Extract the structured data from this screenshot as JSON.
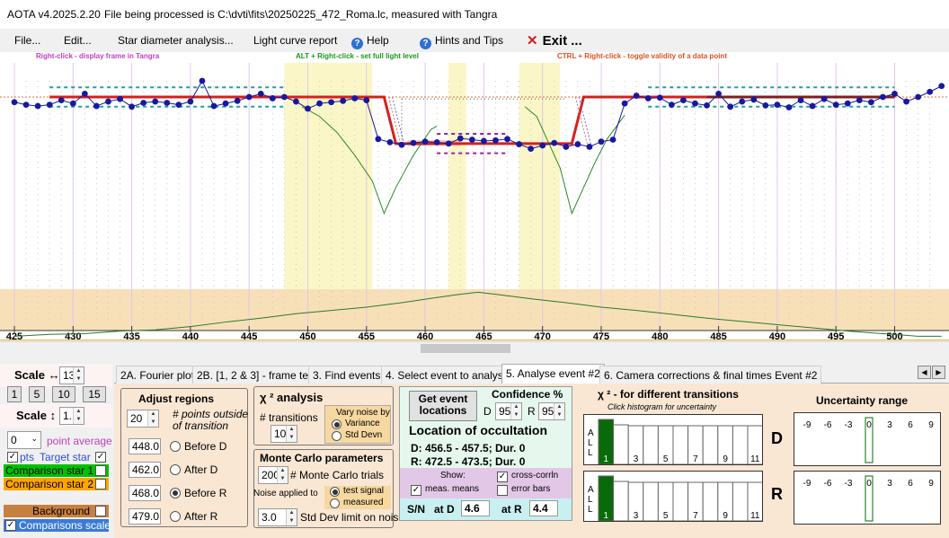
{
  "window": {
    "version": "AOTA v4.2025.2.20",
    "processing": "File being processed is C:\\dvti\\fits\\20250225_472_Roma.lc, measured with Tangra"
  },
  "menu": {
    "file": "File...",
    "edit": "Edit...",
    "star_diameter": "Star diameter analysis...",
    "light_curve_report": "Light curve report",
    "help": "Help",
    "hints": "Hints and Tips",
    "exit": "Exit ..."
  },
  "hints": {
    "right_click": "Right-click  -  display frame in Tangra",
    "alt_right_click": "ALT + Right-click  -  set full light level",
    "ctrl_right_click": "CTRL + Right-click  -  toggle validity of a data point"
  },
  "chart_data": {
    "type": "line",
    "x_ticks": [
      "425",
      "430",
      "435",
      "440",
      "445",
      "450",
      "455",
      "460",
      "465",
      "470",
      "475",
      "480",
      "485",
      "490",
      "495",
      "500"
    ],
    "xlim": [
      424.5,
      504
    ],
    "target": {
      "x": [
        425,
        426,
        427,
        428,
        429,
        430,
        431,
        432,
        433,
        434,
        435,
        436,
        437,
        438,
        439,
        440,
        441,
        442,
        443,
        444,
        445,
        446,
        447,
        448,
        449,
        450,
        451,
        452,
        453,
        454,
        455,
        456,
        457,
        458,
        459,
        460,
        461,
        462,
        463,
        464,
        465,
        466,
        467,
        468,
        469,
        470,
        471,
        472,
        473,
        474,
        475,
        476,
        477,
        478,
        479,
        480,
        481,
        482,
        483,
        484,
        485,
        486,
        487,
        488,
        489,
        490,
        491,
        492,
        493,
        494,
        495,
        496,
        497,
        498,
        499,
        500,
        501,
        502,
        503,
        504
      ],
      "y": [
        0.92,
        0.88,
        0.86,
        0.88,
        0.95,
        0.9,
        1.05,
        0.86,
        0.93,
        0.97,
        0.85,
        0.91,
        0.93,
        0.91,
        0.88,
        0.93,
        1.25,
        0.86,
        0.9,
        0.94,
        1.0,
        1.05,
        0.98,
        1.0,
        0.93,
        0.82,
        0.9,
        0.92,
        0.94,
        0.98,
        0.95,
        0.35,
        0.3,
        0.26,
        0.29,
        0.31,
        0.3,
        0.28,
        0.36,
        0.34,
        0.32,
        0.33,
        0.35,
        0.27,
        0.2,
        0.25,
        0.29,
        0.23,
        0.27,
        0.23,
        0.31,
        0.34,
        0.9,
        1.02,
        0.98,
        0.99,
        0.88,
        0.95,
        0.9,
        0.87,
        1.05,
        0.85,
        0.93,
        0.96,
        0.87,
        0.88,
        0.84,
        0.95,
        0.86,
        0.97,
        0.88,
        0.9,
        0.95,
        0.92,
        1.0,
        1.05,
        0.93,
        1.0,
        1.08,
        1.17
      ]
    },
    "model_levels": {
      "baseline": 1.0,
      "bottom": 0.28,
      "D": 456.5,
      "R": 472.5
    },
    "event_markers": {
      "D": [
        456.5,
        457.5
      ],
      "R": [
        472.5,
        473.5
      ]
    },
    "regions": {
      "before_d": [
        448,
        455.5
      ],
      "after_d": [
        462,
        463.5
      ],
      "before_r": [
        468,
        471.5
      ],
      "after_r": [
        479,
        480
      ]
    },
    "grid": true
  },
  "left_panel": {
    "scale_h_label": "Scale ↔",
    "scale_h_value": "13.0",
    "scale_buttons": [
      "1",
      "5",
      "10",
      "15"
    ],
    "scale_v_label": "Scale ↕",
    "scale_v_value": "1.10",
    "point_avg_value": "0",
    "point_avg_label": "point average",
    "target_row_left": "pts",
    "target_label": "Target star",
    "comp1_label": "Comparison star 1",
    "comp2_label": "Comparison star 2",
    "background_label": "Background",
    "comparisons_scaled_label": "Comparisons scaled",
    "colors": {
      "comp1": "#00c000",
      "comp2": "#ffa500",
      "background": "#c88040",
      "comparisons_scaled": "#3a7bd5"
    }
  },
  "tabs": [
    "2A. Fourier plot",
    "2B. [1, 2 & 3] - frame test",
    "3. Find events",
    "4. Select event to analyse",
    "5. Analyse event #2",
    "6. Camera corrections & final times Event #2"
  ],
  "adjust": {
    "title": "Adjust regions",
    "points_value": "20",
    "points_label": "# points outside of transition",
    "rows": [
      {
        "value": "448.0",
        "label": "Before D"
      },
      {
        "value": "462.0",
        "label": "After D"
      },
      {
        "value": "468.0",
        "label": "Before R"
      },
      {
        "value": "479.0",
        "label": "After R"
      }
    ]
  },
  "chi2": {
    "title": "χ ² analysis",
    "transitions_label": "# transitions",
    "transitions_value": "10",
    "vary_label": "Vary noise by",
    "variance": "Variance",
    "std_devn": "Std Devn"
  },
  "monte_carlo": {
    "title": "Monte Carlo parameters",
    "trials_value": "200",
    "trials_label": "# Monte Carlo trials",
    "noise_applied_label": "Noise applied to",
    "test_signal": "test signal",
    "measured": "measured",
    "limit_value": "3.0",
    "limit_label": "Std Dev limit on noise"
  },
  "location": {
    "get_event_button": "Get event locations",
    "confidence_label": "Confidence %",
    "d_label": "D",
    "d_value": "95",
    "r_label": "R",
    "r_value": "95",
    "title": "Location of occultation",
    "d_line": "D: 456.5 - 457.5; Dur. 0",
    "r_line": "R: 472.5 - 473.5; Dur. 0",
    "show_label": "Show:",
    "cross_corr": "cross-corrln",
    "meas_means": "meas. means",
    "error_bars": "error bars",
    "sn_label": "S/N",
    "at_d_label": "at D",
    "at_d_value": "4.6",
    "at_r_label": "at R",
    "at_r_value": "4.4"
  },
  "chi2_hist": {
    "title": "χ ² - for different transitions",
    "subtitle": "Click histogram for uncertainty",
    "all_letters": [
      "A",
      "L",
      "L"
    ],
    "numbers": [
      "1",
      "3",
      "5",
      "7",
      "9",
      "11"
    ],
    "d_label": "D",
    "r_label": "R",
    "bar_heights_d": [
      1.0,
      0.88,
      0.86,
      0.86,
      0.86,
      0.86,
      0.86,
      0.86,
      0.86,
      0.86,
      0.86
    ],
    "bar_heights_r": [
      1.0,
      0.88,
      0.86,
      0.86,
      0.86,
      0.86,
      0.86,
      0.86,
      0.86,
      0.86,
      0.86
    ]
  },
  "uncertainty": {
    "title": "Uncertainty range",
    "ticks": [
      "-9",
      "-6",
      "-3",
      "0",
      "3",
      "6",
      "9"
    ]
  }
}
